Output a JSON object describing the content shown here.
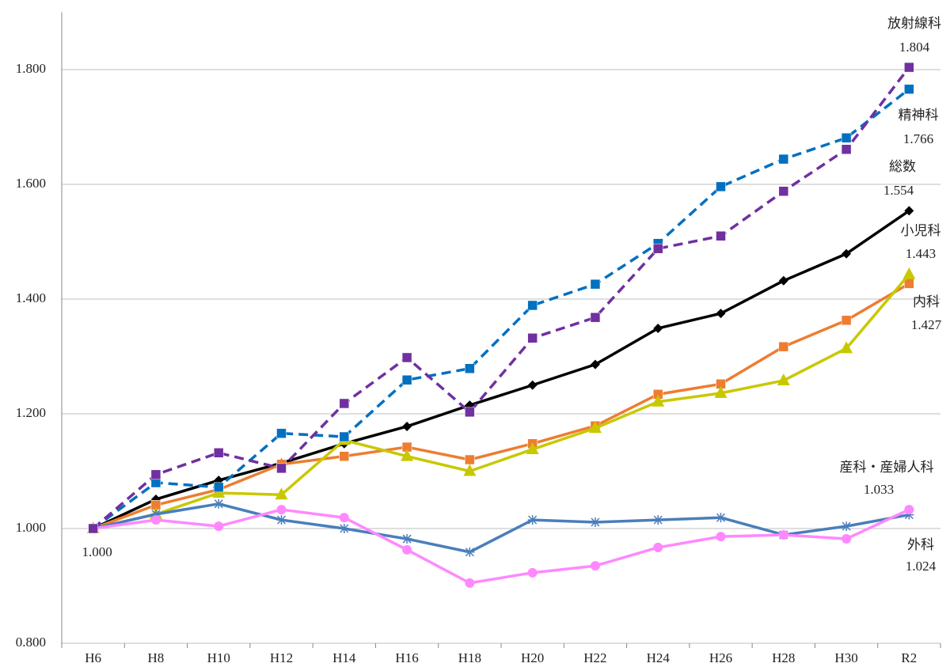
{
  "chart_data": {
    "type": "line",
    "categories": [
      "H6",
      "H8",
      "H10",
      "H12",
      "H14",
      "H16",
      "H18",
      "H20",
      "H22",
      "H24",
      "H26",
      "H28",
      "H30",
      "R2"
    ],
    "ylim": [
      0.8,
      1.9
    ],
    "yticks": [
      {
        "value": 0.8,
        "label": "0.800"
      },
      {
        "value": 1.0,
        "label": "1.000"
      },
      {
        "value": 1.2,
        "label": "1.200"
      },
      {
        "value": 1.4,
        "label": "1.400"
      },
      {
        "value": 1.6,
        "label": "1.600"
      },
      {
        "value": 1.8,
        "label": "1.800"
      }
    ],
    "grid": true,
    "series": [
      {
        "name": "総数",
        "color": "#000000",
        "marker": "diamond",
        "dashed": false,
        "values": [
          1.0,
          1.051,
          1.084,
          1.114,
          1.148,
          1.178,
          1.215,
          1.25,
          1.286,
          1.349,
          1.375,
          1.432,
          1.479,
          1.554
        ],
        "value_labels": [
          "1.000",
          null,
          null,
          null,
          null,
          null,
          null,
          null,
          null,
          null,
          null,
          null,
          null,
          "1.554"
        ]
      },
      {
        "name": "内科",
        "color": "#ed7d31",
        "marker": "square",
        "dashed": false,
        "values": [
          1.0,
          1.041,
          1.068,
          1.112,
          1.126,
          1.142,
          1.12,
          1.148,
          1.179,
          1.234,
          1.252,
          1.317,
          1.363,
          1.427
        ],
        "value_labels": [
          null,
          null,
          null,
          null,
          null,
          null,
          null,
          null,
          null,
          null,
          null,
          null,
          null,
          "1.427"
        ]
      },
      {
        "name": "小児科",
        "color": "#c8c800",
        "marker": "triangle",
        "dashed": false,
        "values": [
          1.0,
          1.025,
          1.062,
          1.059,
          1.154,
          1.126,
          1.1,
          1.138,
          1.175,
          1.221,
          1.236,
          1.258,
          1.314,
          1.443
        ],
        "value_labels": [
          null,
          null,
          null,
          null,
          null,
          null,
          null,
          null,
          null,
          null,
          null,
          null,
          null,
          "1.443"
        ]
      },
      {
        "name": "外科",
        "color": "#4a7ebb",
        "marker": "asterisk",
        "dashed": false,
        "values": [
          1.0,
          1.025,
          1.043,
          1.015,
          1.0,
          0.982,
          0.959,
          1.015,
          1.011,
          1.015,
          1.019,
          0.989,
          1.004,
          1.024
        ],
        "value_labels": [
          null,
          null,
          null,
          null,
          null,
          null,
          null,
          null,
          null,
          null,
          null,
          null,
          null,
          "1.024"
        ]
      },
      {
        "name": "産科・産婦人科",
        "color": "#ff88ff",
        "marker": "circle",
        "dashed": false,
        "values": [
          1.0,
          1.015,
          1.004,
          1.033,
          1.019,
          0.963,
          0.905,
          0.923,
          0.935,
          0.967,
          0.986,
          0.989,
          0.982,
          1.033
        ],
        "value_labels": [
          null,
          null,
          null,
          null,
          null,
          null,
          null,
          null,
          null,
          null,
          null,
          null,
          null,
          "1.033"
        ]
      },
      {
        "name": "精神科",
        "color": "#0070c0",
        "marker": "square",
        "dashed": true,
        "values": [
          1.0,
          1.08,
          1.072,
          1.166,
          1.16,
          1.259,
          1.279,
          1.389,
          1.426,
          1.497,
          1.596,
          1.644,
          1.681,
          1.766
        ],
        "value_labels": [
          null,
          null,
          null,
          null,
          null,
          null,
          null,
          null,
          null,
          null,
          null,
          null,
          null,
          "1.766"
        ]
      },
      {
        "name": "放射線科",
        "color": "#7030a0",
        "marker": "square",
        "dashed": true,
        "values": [
          1.0,
          1.094,
          1.132,
          1.105,
          1.218,
          1.298,
          1.203,
          1.332,
          1.368,
          1.488,
          1.51,
          1.588,
          1.661,
          1.804
        ],
        "value_labels": [
          null,
          null,
          null,
          null,
          null,
          null,
          null,
          null,
          null,
          null,
          null,
          null,
          null,
          "1.804"
        ]
      }
    ]
  }
}
